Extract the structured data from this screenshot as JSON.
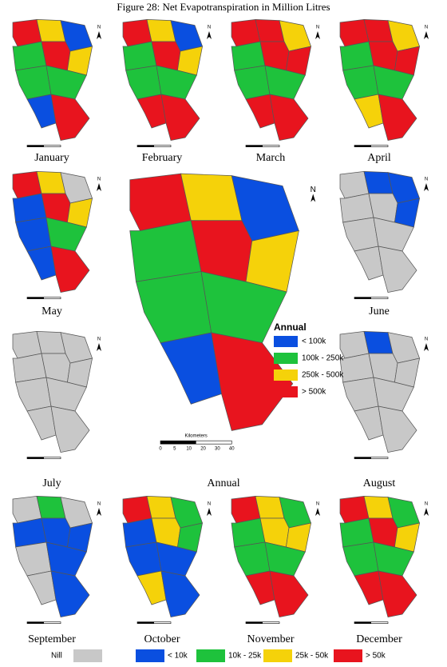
{
  "title": "Figure 28: Net Evapotranspiration in Million Litres",
  "north": "N",
  "scale": {
    "title": "Kilometers",
    "ticks": [
      "0",
      "5",
      "10",
      "20",
      "30",
      "40"
    ]
  },
  "legend": [
    {
      "label": "Nill",
      "color": "#c8c8c8"
    },
    {
      "label": "< 10k",
      "color": "#0a4fe0"
    },
    {
      "label": "10k - 25k",
      "color": "#1ec23c"
    },
    {
      "label": "25k - 50k",
      "color": "#f5d20a"
    },
    {
      "label": "> 50k",
      "color": "#e8141e"
    }
  ],
  "annual_legend": {
    "title": "Annual",
    "items": [
      {
        "label": "< 100k",
        "color": "#0a4fe0"
      },
      {
        "label": "100k - 250k",
        "color": "#1ec23c"
      },
      {
        "label": "250k - 500k",
        "color": "#f5d20a"
      },
      {
        "label": "> 500k",
        "color": "#e8141e"
      }
    ]
  },
  "panels": [
    {
      "label": "January",
      "regions": [
        4,
        3,
        1,
        2,
        4,
        3,
        2,
        2,
        1,
        4
      ]
    },
    {
      "label": "February",
      "regions": [
        4,
        3,
        1,
        2,
        4,
        3,
        2,
        2,
        4,
        4
      ]
    },
    {
      "label": "March",
      "regions": [
        4,
        4,
        3,
        2,
        4,
        4,
        2,
        2,
        4,
        4
      ]
    },
    {
      "label": "April",
      "regions": [
        4,
        4,
        3,
        2,
        4,
        4,
        2,
        2,
        3,
        4
      ]
    },
    {
      "label": "May",
      "regions": [
        4,
        3,
        0,
        1,
        4,
        3,
        1,
        2,
        1,
        4
      ]
    },
    {
      "label": "June",
      "regions": [
        0,
        1,
        1,
        0,
        0,
        1,
        0,
        0,
        0,
        0
      ]
    },
    {
      "label": "July",
      "regions": [
        0,
        0,
        0,
        0,
        0,
        0,
        0,
        0,
        0,
        0
      ]
    },
    {
      "label": "August",
      "regions": [
        0,
        1,
        0,
        0,
        0,
        0,
        0,
        0,
        0,
        0
      ]
    },
    {
      "label": "September",
      "regions": [
        0,
        2,
        0,
        1,
        1,
        1,
        0,
        1,
        0,
        1
      ]
    },
    {
      "label": "October",
      "regions": [
        4,
        3,
        2,
        1,
        3,
        2,
        1,
        1,
        3,
        1
      ]
    },
    {
      "label": "November",
      "regions": [
        4,
        3,
        2,
        2,
        3,
        3,
        2,
        2,
        4,
        4
      ]
    },
    {
      "label": "December",
      "regions": [
        4,
        3,
        2,
        2,
        4,
        3,
        2,
        2,
        4,
        4
      ]
    }
  ],
  "annual": {
    "label": "Annual",
    "regions": [
      3,
      2,
      0,
      1,
      3,
      2,
      1,
      1,
      0,
      3
    ]
  }
}
